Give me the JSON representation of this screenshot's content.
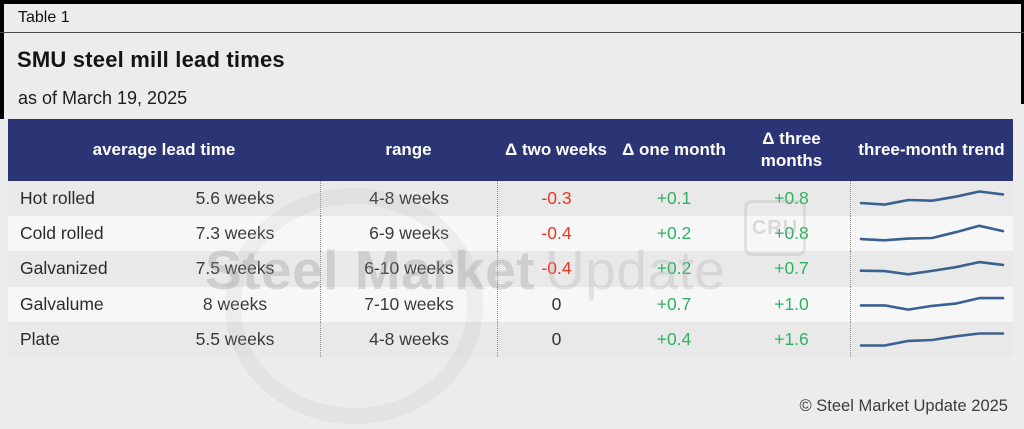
{
  "page": {
    "table_label": "Table 1",
    "title": "SMU steel mill lead times",
    "subtitle": "as of March 19, 2025",
    "footer": "© Steel Market Update 2025",
    "watermark": {
      "text_bold": "Steel Market",
      "text_light": "Update",
      "badge": "CRU"
    }
  },
  "colors": {
    "header_bg": "#2b3575",
    "positive": "#2eb262",
    "negative": "#ee3424",
    "sparkline": "#3a6191",
    "row_odd": "#e9e9e9",
    "row_even": "#f7f7f7",
    "page_bg": "#ececec"
  },
  "chart_data": {
    "type": "table",
    "title": "SMU steel mill lead times",
    "subtitle": "as of March 19, 2025",
    "columns": [
      "average lead time",
      "range",
      "Δ two weeks",
      "Δ one month",
      "Δ three months",
      "three-month trend"
    ],
    "rows": [
      {
        "product": "Hot rolled",
        "average_lead_time": "5.6 weeks",
        "range": "4-8 weeks",
        "delta_two_weeks": "-0.3",
        "delta_one_month": "+0.1",
        "delta_three_months": "+0.8",
        "trend_sparkline": [
          3.5,
          2.8,
          4.8,
          4.5,
          6.2,
          8.5,
          7.2
        ]
      },
      {
        "product": "Cold rolled",
        "average_lead_time": "7.3 weeks",
        "range": "6-9 weeks",
        "delta_two_weeks": "-0.4",
        "delta_one_month": "+0.2",
        "delta_three_months": "+0.8",
        "trend_sparkline": [
          3.0,
          2.5,
          3.2,
          3.5,
          6.0,
          8.8,
          6.5
        ]
      },
      {
        "product": "Galvanized",
        "average_lead_time": "7.5 weeks",
        "range": "6-10 weeks",
        "delta_two_weeks": "-0.4",
        "delta_one_month": "+0.2",
        "delta_three_months": "+0.7",
        "trend_sparkline": [
          4.5,
          4.3,
          2.9,
          4.4,
          6.0,
          8.2,
          7.0
        ]
      },
      {
        "product": "Galvalume",
        "average_lead_time": "8 weeks",
        "range": "7-10 weeks",
        "delta_two_weeks": "0",
        "delta_one_month": "+0.7",
        "delta_three_months": "+1.0",
        "trend_sparkline": [
          4.6,
          4.6,
          2.8,
          4.4,
          5.4,
          7.8,
          7.8
        ]
      },
      {
        "product": "Plate",
        "average_lead_time": "5.5 weeks",
        "range": "4-8 weeks",
        "delta_two_weeks": "0",
        "delta_one_month": "+0.4",
        "delta_three_months": "+1.6",
        "trend_sparkline": [
          2.4,
          2.4,
          4.4,
          4.8,
          6.4,
          7.6,
          7.6
        ]
      }
    ]
  }
}
